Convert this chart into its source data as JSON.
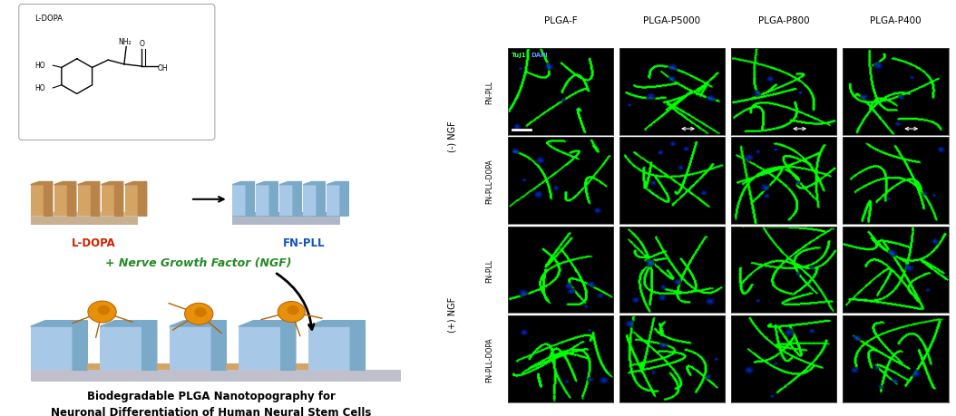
{
  "title_line1": "Biodegradable PLGA Nanotopography for",
  "title_line2": "Neuronal Differentiation of Human Neural Stem Cells",
  "left_label_ldopa": "L-DOPA",
  "left_label_fnpll": "FN-PLL",
  "ngf_label": "+ Nerve Growth Factor (NGF)",
  "col_labels": [
    "PLGA-F",
    "PLGA-P5000",
    "PLGA-P800",
    "PLGA-P400"
  ],
  "inner_row_labels": [
    "FN-PLL",
    "FN-PLL-DOPA",
    "FN-PLL",
    "FN-PLL-DOPA"
  ],
  "ngf_neg_label": "(-) NGF",
  "ngf_pos_label": "(+) NGF",
  "ldopa_color": "#cc2200",
  "fnpll_color": "#1155bb",
  "ngf_text_color": "#228B22",
  "bg_color": "#ffffff",
  "nanoridge_top_color": "#a8c8e8",
  "nanoridge_side_color": "#7aaac8",
  "nanoridge_base_color": "#b0b8c8",
  "ldopa_ridge_top": "#d4a464",
  "ldopa_ridge_side": "#b8844a",
  "ldopa_base_color": "#c8b090"
}
